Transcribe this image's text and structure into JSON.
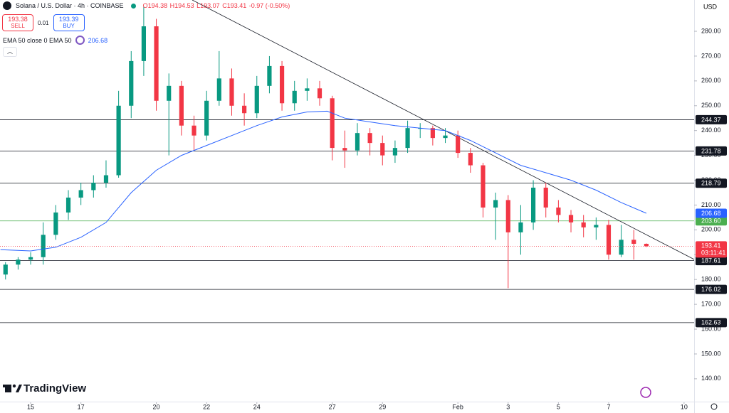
{
  "header": {
    "symbol": "Solana / U.S. Dollar · 4h · COINBASE",
    "ohlc": [
      "O194.38",
      "H194.53",
      "L193.07",
      "C193.41",
      "-0.97 (-0.50%)"
    ],
    "sell_price": "193.38",
    "sell": "SELL",
    "spread": "0.01",
    "buy_price": "193.39",
    "buy": "BUY",
    "indicator": "EMA 50 close 0 EMA 50",
    "currency": "USD",
    "watermark": "TradingView"
  },
  "chart_data": {
    "type": "candlestick",
    "x": [
      14,
      14.5,
      15,
      15.5,
      16,
      16.5,
      17,
      17.5,
      18,
      18.5,
      19,
      19.5,
      20,
      20.5,
      21,
      21.5,
      22,
      22.5,
      23,
      23.5,
      24,
      24.5,
      25,
      25.5,
      26,
      26.5,
      27,
      27.5,
      28,
      28.5,
      29,
      29.5,
      30,
      30.5,
      31,
      31.5,
      32,
      32.5,
      33,
      33.5,
      34,
      34.5,
      35,
      35.5,
      36,
      36.5,
      37,
      37.5,
      38,
      38.5,
      39,
      39.5
    ],
    "open": [
      182,
      186,
      188,
      189,
      198,
      207,
      213,
      216,
      219,
      222,
      250,
      268,
      282,
      252,
      258,
      242,
      238,
      252,
      261,
      250,
      247,
      258,
      266,
      251,
      256,
      257,
      253,
      233,
      232,
      239,
      235,
      230,
      233,
      241,
      241,
      237,
      238,
      231,
      226,
      209,
      212,
      199,
      203,
      217,
      209,
      206,
      203,
      201,
      202,
      190,
      196,
      194.38
    ],
    "high": [
      187,
      189,
      191,
      203,
      210,
      216,
      219,
      222,
      228,
      256,
      272,
      290,
      285,
      263,
      260,
      246,
      256,
      272,
      265,
      255,
      262,
      270,
      268,
      260,
      261,
      260,
      254,
      240,
      243,
      241,
      238,
      236,
      244,
      243,
      242,
      241,
      240,
      233,
      227,
      215,
      214,
      210,
      220,
      219,
      212,
      208,
      206,
      205,
      204,
      202,
      200,
      194.53
    ],
    "low": [
      180,
      184,
      186,
      186,
      196,
      204,
      210,
      213,
      217,
      221,
      245,
      262,
      248,
      230,
      238,
      232,
      236,
      250,
      246,
      242,
      245,
      255,
      248,
      248,
      252,
      250,
      228,
      225,
      230,
      230,
      226,
      227,
      231,
      237,
      234,
      235,
      229,
      223,
      205,
      196,
      176.5,
      190,
      200,
      205,
      203,
      199,
      197,
      196,
      188,
      189,
      188,
      193.07
    ],
    "close": [
      186,
      188,
      189,
      198,
      207,
      213,
      216,
      219,
      222,
      250,
      268,
      282,
      252,
      258,
      242,
      238,
      252,
      261,
      250,
      247,
      258,
      266,
      251,
      256,
      257,
      253,
      233,
      232,
      239,
      235,
      230,
      233,
      241,
      241,
      237,
      238,
      231,
      226,
      209,
      212,
      199,
      203,
      217,
      209,
      206,
      203,
      201,
      202,
      190,
      196,
      194.38,
      193.41
    ],
    "up_color": "#089981",
    "down_color": "#f23645",
    "series": [
      {
        "name": "EMA 50",
        "color": "#2962ff",
        "x": [
          13.8,
          15,
          16,
          17,
          18,
          19,
          20,
          21,
          22,
          23,
          24,
          25,
          26,
          26.8,
          27.5,
          28.5,
          29.5,
          30.5,
          31.5,
          32.5,
          33.5,
          34.5,
          35.5,
          36.5,
          37.5,
          38.5,
          39.5
        ],
        "values": [
          192,
          191.5,
          193,
          197,
          203,
          215,
          224,
          230,
          234,
          238,
          242,
          245.5,
          247.5,
          247.8,
          245,
          243.5,
          242,
          241,
          240,
          236,
          231,
          226,
          223,
          220,
          216,
          211,
          206.68
        ]
      }
    ],
    "levels": [
      244.37,
      231.78,
      218.79,
      187.61,
      176.02,
      162.63
    ],
    "level_color": "#131722",
    "support": {
      "value": 203.6,
      "label": "203.60",
      "color": "#4caf50"
    },
    "countdown": "03:11:41",
    "trendline": {
      "x": [
        21.43,
        41.4
      ],
      "values": [
        292.6,
        188.1
      ],
      "color": "#131722"
    },
    "xlim": [
      13.78,
      41.4
    ],
    "xticks": [
      15,
      17,
      20,
      22,
      24,
      27,
      29,
      {
        "value": 32,
        "label": "Feb"
      },
      {
        "value": 34,
        "label": "3"
      },
      {
        "value": 36,
        "label": "5"
      },
      {
        "value": 38,
        "label": "7"
      },
      {
        "value": 41,
        "label": "10"
      }
    ],
    "ylim": [
      130.8,
      292.6
    ],
    "yticks": [
      {
        "value": 140,
        "label": "140.00"
      },
      {
        "value": 150,
        "label": "150.00"
      },
      {
        "value": 160,
        "label": "160.00"
      },
      {
        "value": 170,
        "label": "170.00"
      },
      {
        "value": 180,
        "label": "180.00"
      },
      {
        "value": 190,
        "label": "190.00"
      },
      {
        "value": 200,
        "label": "200.00"
      },
      {
        "value": 210,
        "label": "210.00"
      },
      {
        "value": 220,
        "label": "220.00"
      },
      {
        "value": 230,
        "label": "230.00"
      },
      {
        "value": 240,
        "label": "240.00"
      },
      {
        "value": 250,
        "label": "250.00"
      },
      {
        "value": 260,
        "label": "260.00"
      },
      {
        "value": 270,
        "label": "270.00"
      },
      {
        "value": 280,
        "label": "280.00"
      }
    ],
    "grid": false
  }
}
